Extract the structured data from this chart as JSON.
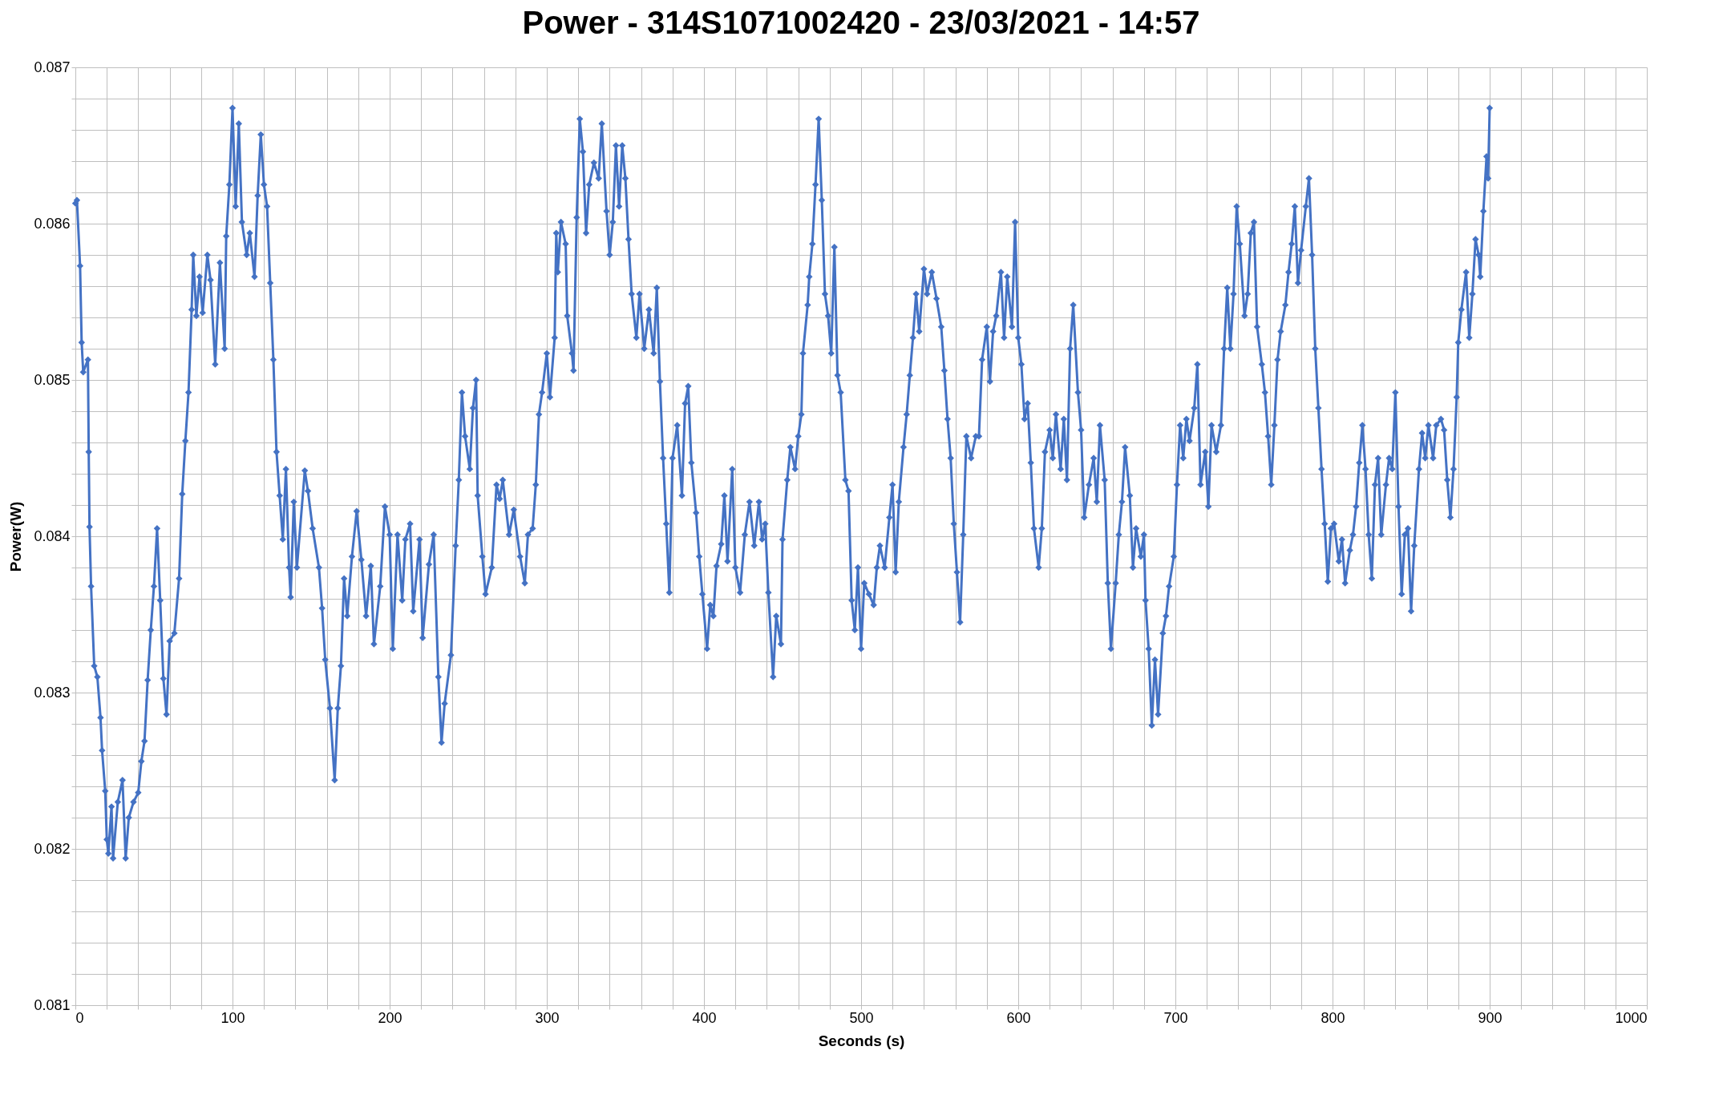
{
  "chart_data": {
    "type": "line",
    "title": "Power - 314S1071002420 - 23/03/2021 - 14:57",
    "xlabel": "Seconds (s)",
    "ylabel": "Power(W)",
    "marker": "diamond",
    "line_style": "solid",
    "grid": true,
    "legend": false,
    "xlim": [
      0,
      1000
    ],
    "ylim": [
      0.081,
      0.087
    ],
    "xticks": [
      0,
      {
        "value": 20,
        "label": null
      },
      {
        "value": 40,
        "label": null
      },
      {
        "value": 60,
        "label": null
      },
      {
        "value": 80,
        "label": null
      },
      100,
      {
        "value": 120,
        "label": null
      },
      {
        "value": 140,
        "label": null
      },
      {
        "value": 160,
        "label": null
      },
      {
        "value": 180,
        "label": null
      },
      200,
      {
        "value": 220,
        "label": null
      },
      {
        "value": 240,
        "label": null
      },
      {
        "value": 260,
        "label": null
      },
      {
        "value": 280,
        "label": null
      },
      300,
      {
        "value": 320,
        "label": null
      },
      {
        "value": 340,
        "label": null
      },
      {
        "value": 360,
        "label": null
      },
      {
        "value": 380,
        "label": null
      },
      400,
      {
        "value": 420,
        "label": null
      },
      {
        "value": 440,
        "label": null
      },
      {
        "value": 460,
        "label": null
      },
      {
        "value": 480,
        "label": null
      },
      500,
      {
        "value": 520,
        "label": null
      },
      {
        "value": 540,
        "label": null
      },
      {
        "value": 560,
        "label": null
      },
      {
        "value": 580,
        "label": null
      },
      600,
      {
        "value": 620,
        "label": null
      },
      {
        "value": 640,
        "label": null
      },
      {
        "value": 660,
        "label": null
      },
      {
        "value": 680,
        "label": null
      },
      700,
      {
        "value": 720,
        "label": null
      },
      {
        "value": 740,
        "label": null
      },
      {
        "value": 760,
        "label": null
      },
      {
        "value": 780,
        "label": null
      },
      800,
      {
        "value": 820,
        "label": null
      },
      {
        "value": 840,
        "label": null
      },
      {
        "value": 860,
        "label": null
      },
      {
        "value": 880,
        "label": null
      },
      900,
      {
        "value": 920,
        "label": null
      },
      {
        "value": 940,
        "label": null
      },
      {
        "value": 960,
        "label": null
      },
      {
        "value": 980,
        "label": null
      },
      1000
    ],
    "yticks": [
      0.081,
      {
        "value": 0.0812,
        "label": null
      },
      {
        "value": 0.0814,
        "label": null
      },
      {
        "value": 0.0816,
        "label": null
      },
      {
        "value": 0.0818,
        "label": null
      },
      0.082,
      {
        "value": 0.0822,
        "label": null
      },
      {
        "value": 0.0824,
        "label": null
      },
      {
        "value": 0.0826,
        "label": null
      },
      {
        "value": 0.0828,
        "label": null
      },
      0.083,
      {
        "value": 0.0832,
        "label": null
      },
      {
        "value": 0.0834,
        "label": null
      },
      {
        "value": 0.0836,
        "label": null
      },
      {
        "value": 0.0838,
        "label": null
      },
      0.084,
      {
        "value": 0.0842,
        "label": null
      },
      {
        "value": 0.0844,
        "label": null
      },
      {
        "value": 0.0846,
        "label": null
      },
      {
        "value": 0.0848,
        "label": null
      },
      0.085,
      {
        "value": 0.0852,
        "label": null
      },
      {
        "value": 0.0854,
        "label": null
      },
      {
        "value": 0.0856,
        "label": null
      },
      {
        "value": 0.0858,
        "label": null
      },
      0.086,
      {
        "value": 0.0862,
        "label": null
      },
      {
        "value": 0.0864,
        "label": null
      },
      {
        "value": 0.0866,
        "label": null
      },
      {
        "value": 0.0868,
        "label": null
      },
      0.087
    ],
    "x": [
      0,
      1,
      3,
      4,
      5,
      8,
      8.5,
      9,
      10,
      12,
      14,
      16,
      17,
      19,
      20,
      21,
      23,
      24,
      27,
      30,
      32,
      34,
      37,
      40,
      42,
      44,
      46,
      48,
      50,
      52,
      54,
      56,
      58,
      60,
      63,
      66,
      68,
      70,
      72,
      74,
      75,
      77,
      79,
      81,
      84,
      86,
      89,
      92,
      95,
      96,
      98,
      100,
      102,
      104,
      106,
      109,
      111,
      114,
      116,
      118,
      120,
      122,
      124,
      126,
      128,
      130,
      132,
      134,
      136,
      137,
      139,
      141,
      146,
      148,
      151,
      155,
      157,
      159,
      162,
      165,
      167,
      169,
      171,
      173,
      176,
      179,
      182,
      185,
      188,
      190,
      194,
      197,
      200,
      202,
      205,
      208,
      210,
      213,
      215,
      219,
      221,
      225,
      228,
      231,
      233,
      235,
      239,
      242,
      244,
      246,
      248,
      251,
      253,
      255,
      256,
      259,
      261,
      265,
      268,
      270,
      272,
      276,
      279,
      283,
      286,
      288,
      291,
      293,
      295,
      297,
      300,
      302,
      305,
      306,
      307,
      309,
      312,
      313,
      316,
      317,
      319,
      321,
      323,
      325,
      327,
      330,
      333,
      335,
      338,
      340,
      342,
      344,
      346,
      348,
      350,
      352,
      354,
      357,
      359,
      362,
      365,
      368,
      370,
      372,
      374,
      376,
      378,
      380,
      383,
      386,
      388,
      390,
      392,
      395,
      397,
      399,
      402,
      404,
      406,
      408,
      411,
      413,
      415,
      418,
      420,
      423,
      426,
      429,
      432,
      435,
      437,
      439,
      441,
      444,
      446,
      449,
      450,
      453,
      455,
      458,
      460,
      462,
      463,
      466,
      467,
      469,
      471,
      473,
      475,
      477,
      479,
      481,
      483,
      485,
      487,
      490,
      492,
      494,
      496,
      498,
      500,
      502,
      505,
      508,
      510,
      512,
      515,
      518,
      520,
      522,
      524,
      527,
      529,
      531,
      533,
      535,
      537,
      540,
      542,
      545,
      548,
      551,
      553,
      555,
      557,
      559,
      561,
      563,
      565,
      567,
      570,
      573,
      575,
      577,
      580,
      582,
      584,
      586,
      589,
      591,
      593,
      596,
      598,
      600,
      602,
      604,
      606,
      608,
      610,
      613,
      615,
      617,
      620,
      622,
      624,
      627,
      629,
      631,
      633,
      635,
      638,
      640,
      642,
      645,
      648,
      650,
      652,
      655,
      657,
      659,
      662,
      664,
      666,
      668,
      671,
      673,
      675,
      678,
      680,
      681,
      683,
      685,
      687,
      689,
      692,
      694,
      696,
      699,
      701,
      703,
      705,
      707,
      709,
      712,
      714,
      716,
      719,
      721,
      723,
      726,
      729,
      731,
      733,
      735,
      737,
      739,
      741,
      744,
      746,
      748,
      750,
      752,
      755,
      757,
      759,
      761,
      763,
      765,
      767,
      770,
      772,
      774,
      776,
      778,
      780,
      783,
      785,
      787,
      789,
      791,
      793,
      795,
      797,
      799,
      801,
      804,
      806,
      808,
      811,
      813,
      815,
      817,
      819,
      821,
      823,
      825,
      827,
      829,
      831,
      834,
      836,
      838,
      840,
      842,
      844,
      846,
      848,
      850,
      852,
      855,
      857,
      859,
      861,
      864,
      866,
      869,
      871,
      873,
      875,
      877,
      879,
      880,
      882,
      885,
      887,
      889,
      891,
      893,
      894,
      896,
      898,
      899,
      900
    ],
    "series": [
      {
        "color": "#4472c4",
        "values": [
          0.08613,
          0.08615,
          0.08573,
          0.08524,
          0.08505,
          0.08513,
          0.08454,
          0.08406,
          0.08368,
          0.08317,
          0.0831,
          0.08284,
          0.08263,
          0.08237,
          0.08206,
          0.08197,
          0.08227,
          0.08194,
          0.0823,
          0.08244,
          0.08194,
          0.0822,
          0.0823,
          0.08236,
          0.08256,
          0.08269,
          0.08308,
          0.0834,
          0.08368,
          0.08405,
          0.08359,
          0.08309,
          0.08286,
          0.08333,
          0.08338,
          0.08373,
          0.08427,
          0.08461,
          0.08492,
          0.08545,
          0.0858,
          0.08541,
          0.08566,
          0.08543,
          0.0858,
          0.08564,
          0.0851,
          0.08575,
          0.0852,
          0.08592,
          0.08625,
          0.08674,
          0.08611,
          0.08664,
          0.08601,
          0.0858,
          0.08594,
          0.08566,
          0.08618,
          0.08657,
          0.08625,
          0.08611,
          0.08562,
          0.08513,
          0.08454,
          0.08426,
          0.08398,
          0.08443,
          0.0838,
          0.08361,
          0.08422,
          0.0838,
          0.08442,
          0.08429,
          0.08405,
          0.0838,
          0.08354,
          0.08321,
          0.0829,
          0.08244,
          0.0829,
          0.08317,
          0.08373,
          0.08349,
          0.08387,
          0.08416,
          0.08385,
          0.08349,
          0.08381,
          0.08331,
          0.08368,
          0.08419,
          0.08401,
          0.08328,
          0.08401,
          0.08359,
          0.08398,
          0.08408,
          0.08352,
          0.08398,
          0.08335,
          0.08382,
          0.08401,
          0.0831,
          0.08268,
          0.08293,
          0.08324,
          0.08394,
          0.08436,
          0.08492,
          0.08464,
          0.08443,
          0.08482,
          0.085,
          0.08426,
          0.08387,
          0.08363,
          0.0838,
          0.08433,
          0.08424,
          0.08436,
          0.08401,
          0.08417,
          0.08387,
          0.0837,
          0.08401,
          0.08405,
          0.08433,
          0.08478,
          0.08492,
          0.08517,
          0.08489,
          0.08527,
          0.08594,
          0.08569,
          0.08601,
          0.08587,
          0.08541,
          0.08517,
          0.08506,
          0.08604,
          0.08667,
          0.08646,
          0.08594,
          0.08625,
          0.08639,
          0.08629,
          0.08664,
          0.08608,
          0.0858,
          0.08601,
          0.0865,
          0.08611,
          0.0865,
          0.08629,
          0.0859,
          0.08555,
          0.08527,
          0.08555,
          0.0852,
          0.08545,
          0.08517,
          0.08559,
          0.08499,
          0.0845,
          0.08408,
          0.08364,
          0.0845,
          0.08471,
          0.08426,
          0.08485,
          0.08496,
          0.08447,
          0.08415,
          0.08387,
          0.08363,
          0.08328,
          0.08356,
          0.08349,
          0.08381,
          0.08395,
          0.08426,
          0.08384,
          0.08443,
          0.0838,
          0.08364,
          0.08401,
          0.08422,
          0.08394,
          0.08422,
          0.08398,
          0.08408,
          0.08364,
          0.0831,
          0.08349,
          0.08331,
          0.08398,
          0.08436,
          0.08457,
          0.08443,
          0.08464,
          0.08478,
          0.08517,
          0.08548,
          0.08566,
          0.08587,
          0.08625,
          0.08667,
          0.08615,
          0.08555,
          0.08541,
          0.08517,
          0.08585,
          0.08503,
          0.08492,
          0.08436,
          0.08429,
          0.08359,
          0.0834,
          0.0838,
          0.08328,
          0.0837,
          0.08363,
          0.08356,
          0.0838,
          0.08394,
          0.0838,
          0.08412,
          0.08433,
          0.08377,
          0.08422,
          0.08457,
          0.08478,
          0.08503,
          0.08527,
          0.08555,
          0.08531,
          0.08571,
          0.08555,
          0.08569,
          0.08552,
          0.08534,
          0.08506,
          0.08475,
          0.0845,
          0.08408,
          0.08377,
          0.08345,
          0.08401,
          0.08464,
          0.0845,
          0.08464,
          0.08464,
          0.08513,
          0.08534,
          0.08499,
          0.08531,
          0.08541,
          0.08569,
          0.08527,
          0.08566,
          0.08534,
          0.08601,
          0.08527,
          0.0851,
          0.08475,
          0.08485,
          0.08447,
          0.08405,
          0.0838,
          0.08405,
          0.08454,
          0.08468,
          0.0845,
          0.08478,
          0.08443,
          0.08475,
          0.08436,
          0.0852,
          0.08548,
          0.08492,
          0.08468,
          0.08412,
          0.08433,
          0.0845,
          0.08422,
          0.08471,
          0.08436,
          0.0837,
          0.08328,
          0.0837,
          0.08401,
          0.08422,
          0.08457,
          0.08426,
          0.0838,
          0.08405,
          0.08387,
          0.08401,
          0.08359,
          0.08328,
          0.08279,
          0.08321,
          0.08286,
          0.08338,
          0.08349,
          0.08368,
          0.08387,
          0.08433,
          0.08471,
          0.0845,
          0.08475,
          0.08461,
          0.08482,
          0.0851,
          0.08433,
          0.08454,
          0.08419,
          0.08471,
          0.08454,
          0.08471,
          0.0852,
          0.08559,
          0.0852,
          0.08555,
          0.08611,
          0.08587,
          0.08541,
          0.08555,
          0.08594,
          0.08601,
          0.08534,
          0.0851,
          0.08492,
          0.08464,
          0.08433,
          0.08471,
          0.08513,
          0.08531,
          0.08548,
          0.08569,
          0.08587,
          0.08611,
          0.08562,
          0.08583,
          0.08611,
          0.08629,
          0.0858,
          0.0852,
          0.08482,
          0.08443,
          0.08408,
          0.08371,
          0.08405,
          0.08408,
          0.08384,
          0.08398,
          0.0837,
          0.08391,
          0.08401,
          0.08419,
          0.08447,
          0.08471,
          0.08443,
          0.08401,
          0.08373,
          0.08433,
          0.0845,
          0.08401,
          0.08433,
          0.0845,
          0.08443,
          0.08492,
          0.08419,
          0.08363,
          0.08401,
          0.08405,
          0.08352,
          0.08394,
          0.08443,
          0.08466,
          0.0845,
          0.08471,
          0.0845,
          0.08471,
          0.08475,
          0.08468,
          0.08436,
          0.08412,
          0.08443,
          0.08489,
          0.08524,
          0.08545,
          0.08569,
          0.08527,
          0.08555,
          0.0859,
          0.0858,
          0.08566,
          0.08608,
          0.08643,
          0.08629,
          0.08674
        ]
      }
    ]
  }
}
